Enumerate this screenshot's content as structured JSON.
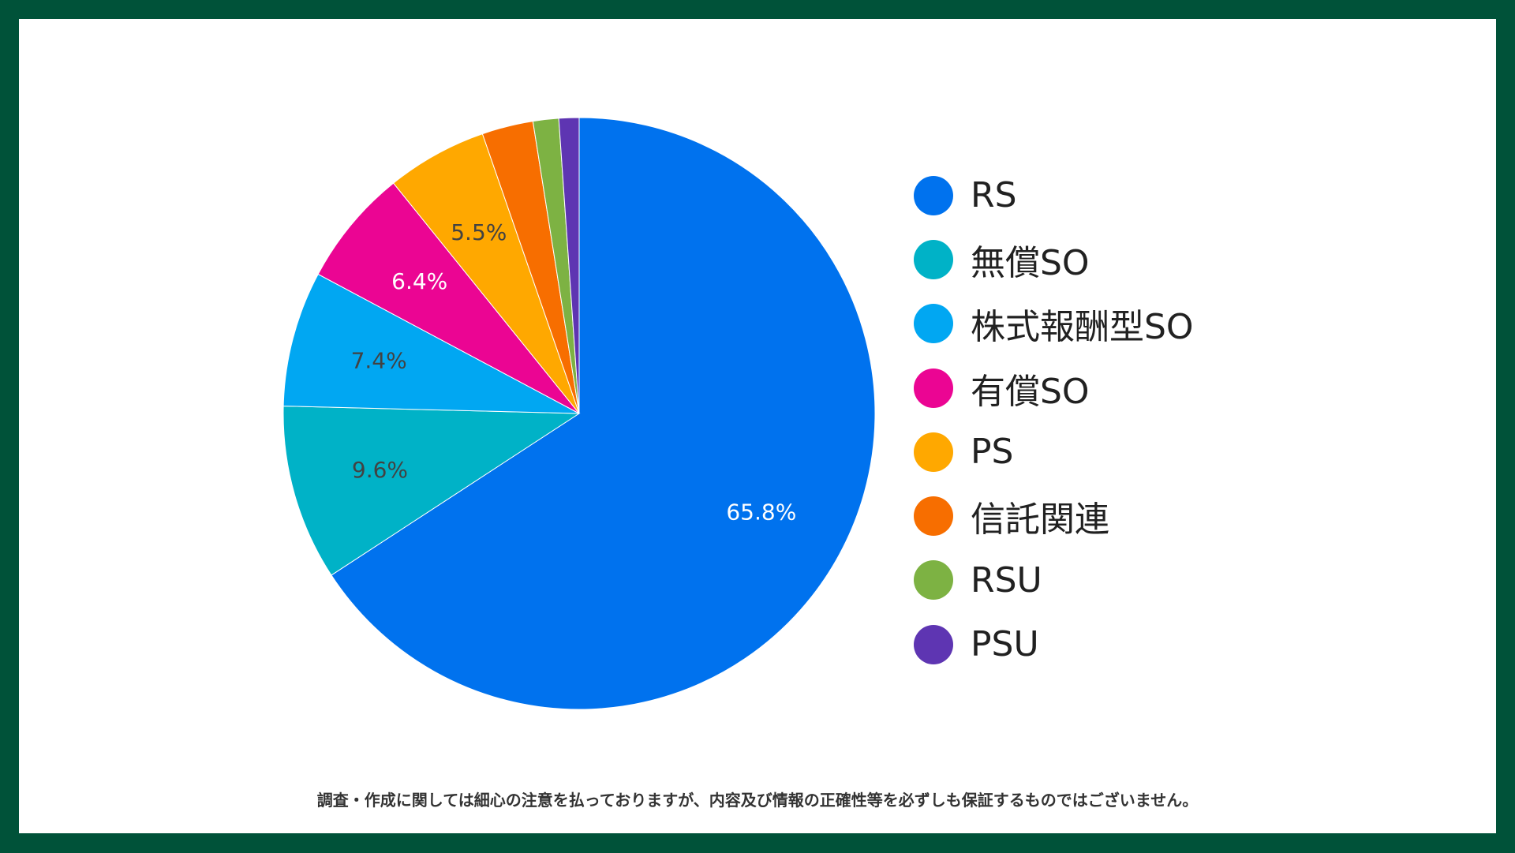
{
  "chart_data": {
    "type": "pie",
    "categories": [
      "RS",
      "無償SO",
      "株式報酬型SO",
      "有償SO",
      "PS",
      "信託関連",
      "RSU",
      "PSU"
    ],
    "values": [
      65.8,
      9.6,
      7.4,
      6.4,
      5.5,
      2.8,
      1.4,
      1.1
    ],
    "slice_labels": [
      "65.8%",
      "9.6%",
      "7.4%",
      "6.4%",
      "5.5%",
      "",
      "",
      ""
    ],
    "colors": [
      "#0072EE",
      "#00B2C7",
      "#01A7F2",
      "#EB0593",
      "#FFA800",
      "#F76E00",
      "#7DB243",
      "#5E35B2"
    ],
    "label_colors": [
      "#ffffff",
      "#424242",
      "#424242",
      "#ffffff",
      "#424242",
      "#ffffff",
      "#ffffff",
      "#ffffff"
    ],
    "legend_position": "right",
    "start_angle_deg": 0,
    "direction": "clockwise"
  },
  "legend": {
    "items": [
      {
        "label": "RS",
        "color": "#0072EE"
      },
      {
        "label": "無償SO",
        "color": "#00B2C7"
      },
      {
        "label": "株式報酬型SO",
        "color": "#01A7F2"
      },
      {
        "label": "有償SO",
        "color": "#EB0593"
      },
      {
        "label": "PS",
        "color": "#FFA800"
      },
      {
        "label": "信託関連",
        "color": "#F76E00"
      },
      {
        "label": "RSU",
        "color": "#7DB243"
      },
      {
        "label": "PSU",
        "color": "#5E35B2"
      }
    ]
  },
  "footnote": "調査・作成に関しては細心の注意を払っておりますが、内容及び情報の正確性等を必ずしも保証するものではございません。"
}
